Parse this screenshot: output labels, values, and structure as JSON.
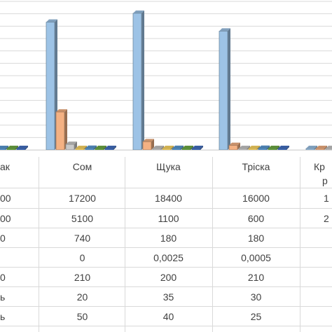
{
  "chart_data": {
    "type": "bar",
    "title": "",
    "categories": [
      "…ак",
      "Сом",
      "Щука",
      "Тріска",
      "Кр… р…"
    ],
    "series": [
      {
        "values": [
          null,
          17200,
          18400,
          16000,
          null
        ],
        "color": "#9dc3e6"
      },
      {
        "values": [
          null,
          5100,
          1100,
          600,
          null
        ],
        "color": "#f4b183"
      },
      {
        "values": [
          null,
          740,
          180,
          180,
          null
        ],
        "color": "#c9c9c9"
      },
      {
        "values": [
          null,
          0,
          0.0025,
          0.0005,
          null
        ],
        "color": "#ffd966"
      },
      {
        "values": [
          null,
          210,
          200,
          210,
          null
        ],
        "color": "#5b9bd5"
      },
      {
        "values": [
          null,
          20,
          35,
          30,
          null
        ],
        "color": "#70ad47"
      },
      {
        "values": [
          null,
          50,
          40,
          25,
          null
        ],
        "color": "#4472c4"
      }
    ],
    "category_labels": {
      "c0": "ак",
      "c1": "Сом",
      "c2": "Щука",
      "c3": "Тріска",
      "c4a": "Кр",
      "c4b": "р"
    },
    "table_partial": {
      "col0": [
        "00",
        "00",
        "0",
        "",
        "0",
        "ь",
        "ь"
      ],
      "col4": [
        "1",
        "2",
        "",
        "",
        "",
        "",
        ""
      ]
    },
    "table": [
      [
        "17200",
        "18400",
        "16000"
      ],
      [
        "5100",
        "1100",
        "600"
      ],
      [
        "740",
        "180",
        "180"
      ],
      [
        "0",
        "0,0025",
        "0,0005"
      ],
      [
        "210",
        "200",
        "210"
      ],
      [
        "20",
        "35",
        "30"
      ],
      [
        "50",
        "40",
        "25"
      ]
    ],
    "ylim": [
      0,
      20000
    ],
    "grid": true
  }
}
